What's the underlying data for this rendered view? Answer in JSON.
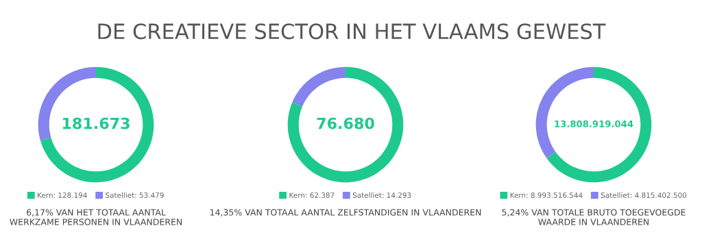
{
  "chart_data": [
    {
      "type": "donut",
      "title": "DE CREATIEVE SECTOR IN HET VLAAMS GEWEST",
      "categories": [
        "Kern",
        "Satelliet"
      ],
      "values": [
        128194,
        53479
      ],
      "value_labels": [
        "128.194",
        "53.479"
      ],
      "colors": [
        "#1ec98e",
        "#8583ee"
      ],
      "legend": "bottom",
      "annotations": [
        "181.673",
        "6,17% VAN HET TOTAAL AANTAL WERKZAME PERSONEN IN VLAANDEREN"
      ]
    },
    {
      "type": "donut",
      "categories": [
        "Kern",
        "Satelliet"
      ],
      "values": [
        62387,
        14293
      ],
      "value_labels": [
        "62.387",
        "14.293"
      ],
      "colors": [
        "#1ec98e",
        "#8583ee"
      ],
      "legend": "bottom",
      "annotations": [
        "76.680",
        "14,35% VAN TOTAAL AANTAL ZELFSTANDIGEN IN VLAANDEREN"
      ]
    },
    {
      "type": "donut",
      "categories": [
        "Kern",
        "Satelliet"
      ],
      "values": [
        8993516544,
        4815402500
      ],
      "value_labels": [
        "8.993.516.544",
        "4.815.402.500"
      ],
      "colors": [
        "#1ec98e",
        "#8583ee"
      ],
      "legend": "bottom",
      "annotations": [
        "13.808.919.044",
        "5,24% VAN TOTALE BRUTO TOEGEVOEGDE WAARDE IN VLAANDEREN"
      ]
    }
  ]
}
